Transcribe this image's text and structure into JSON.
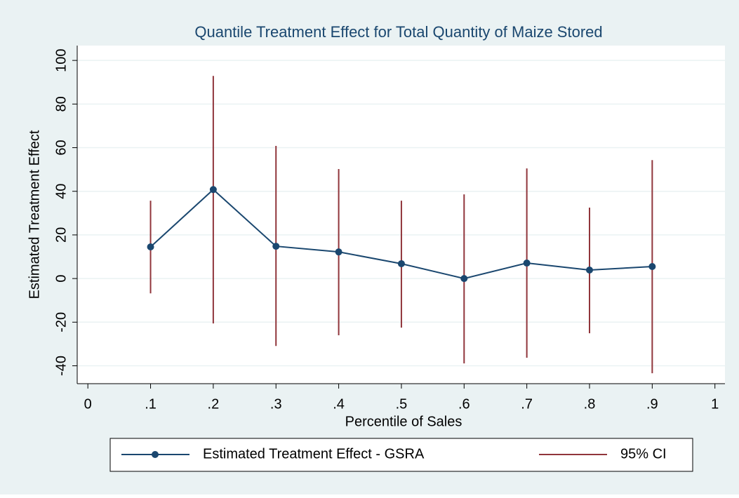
{
  "chart_data": {
    "type": "line",
    "title": "Quantile Treatment Effect for Total Quantity of Maize Stored",
    "x_label": "Percentile of Sales",
    "y_label": "Estimated Treatment Effect",
    "x": [
      0.1,
      0.2,
      0.3,
      0.4,
      0.5,
      0.6,
      0.7,
      0.8,
      0.9
    ],
    "series": [
      {
        "name": "Estimated Treatment Effect - GSRA",
        "color": "#1a476f",
        "values": [
          14.5,
          40.8,
          14.8,
          12.2,
          6.8,
          0,
          7.1,
          3.9,
          5.5
        ]
      },
      {
        "name": "95% CI",
        "color": "#90353b",
        "lower": [
          -6.8,
          -20.6,
          -30.9,
          -26,
          -22.5,
          -38.9,
          -36.3,
          -25.1,
          -43.4
        ],
        "upper": [
          35.7,
          92.9,
          60.8,
          50.2,
          35.7,
          38.6,
          50.5,
          32.5,
          54.3
        ]
      }
    ],
    "xlim": [
      -0.017,
      1.016
    ],
    "xticks": [
      0,
      {
        "value": 0.1,
        "label": ".1"
      },
      {
        "value": 0.2,
        "label": ".2"
      },
      {
        "value": 0.3,
        "label": ".3"
      },
      {
        "value": 0.4,
        "label": ".4"
      },
      {
        "value": 0.5,
        "label": ".5"
      },
      {
        "value": 0.6,
        "label": ".6"
      },
      {
        "value": 0.7,
        "label": ".7"
      },
      {
        "value": 0.8,
        "label": ".8"
      },
      {
        "value": 0.9,
        "label": ".9"
      },
      1
    ],
    "ylim": [
      -48.2,
      106.8
    ],
    "yticks": [
      -40,
      -20,
      0,
      20,
      40,
      60,
      80,
      100
    ],
    "grid": true,
    "legend": "bottom"
  }
}
